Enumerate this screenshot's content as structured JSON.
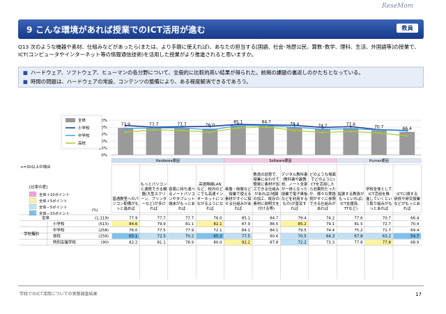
{
  "watermark": "ReseMom",
  "title": "9  こんな環境があれば授業でのICT活用が進む",
  "tag": "教員",
  "question": "Q13  次のような機器や素材、仕組みなどがあったら(または、より手軽に使えれば)、あなたの担当する[国語、社会･地歴公民、算数･数学、理科、生活、外国語等]の授業で、ICT(コンピュータやインターネット等の情報通信技術)を活用した授業がより推進されると思いますか。",
  "findings": [
    "ハードウェア、ソフトウェア、ヒューマンの各分野について、全般的に比較的高い結果が得られた。前掲の課題の裏返しのかたちとなっている。",
    "時間の問題は、ハードウェアの常設、コンテンツの整備により、ある程度解消できるであろう。"
  ],
  "footer": "学校でのICT活用についての実態調査結果",
  "page": "17",
  "n_note": "n=30以上の場合",
  "legend_title": "[比率の差]",
  "legend_items": [
    "全体＋10ポイント",
    "全体＋5ポイント",
    "全体－5ポイント",
    "全体－10ポイント"
  ],
  "row_header": "学校種別",
  "col_n": "(n)",
  "pct": "(%)",
  "chart_data": {
    "type": "bar",
    "ylim": [
      0,
      100
    ],
    "yticks": [
      "0%",
      "20%",
      "40%",
      "60%",
      "80%",
      "100%"
    ],
    "groups": [
      "Hardware要因",
      "Software要因",
      "Human要因"
    ],
    "categories": [
      "普通教室へのパソコン配備がもっと進めば",
      "もっとパソコンと連携できる機器(大型スクリーン、プリンターなど)が多ければ",
      "容易に持ち運べるノートパソコンやタブレット端末がもっとあれば",
      "高速無線LANなど、校内のどこでも高速インターネットにつながるようになれば",
      "画像・映像など、授業で使える素材がすぐに探せる仕組みがあれば",
      "教員の創意で、授業に合わせて簡単に素材が加工できる仕組みがあれば(地図の加工、既存の素材に説明文を付ける等)",
      "デジタル教科書(教科書や副教材、ノート全部が一体となった授業で電子黒板などを利用するもの)が普及すれば",
      "どのような場面でどのようにICTを活用したら効果的だったか、様々な実践例がすぐに参照できる仕組みがあれば",
      "指導する教員がもっといれば(ICT支援員、TTなど)",
      "学校全体としてICT活用を推進していくという取り組みがもっとあれば",
      "ICTに関する研修や研究授業などがもっとあれば"
    ],
    "series": [
      {
        "name": "全体",
        "n": "(1,119)",
        "values": [
          77.9,
          77.7,
          77.7,
          76.0,
          85.1,
          84.7,
          79.4,
          74.2,
          77.6,
          70.7,
          66.4
        ]
      },
      {
        "name": "小学校",
        "n": "(513)",
        "values": [
          84.6,
          79.9,
          81.1,
          82.1,
          87.9,
          86.5,
          85.2,
          79.1,
          81.5,
          72.7,
          70.4
        ]
      },
      {
        "name": "中学校",
        "n": "(258)",
        "values": [
          76.0,
          77.5,
          77.9,
          72.1,
          84.1,
          84.1,
          79.5,
          74.4,
          75.2,
          71.7,
          69.4
        ]
      },
      {
        "name": "高校",
        "n": "(258)",
        "values": [
          65.1,
          72.5,
          70.2,
          65.3,
          77.5,
          80.6,
          70.5,
          64.3,
          67.8,
          63.2,
          54.7
        ]
      },
      {
        "name": "特別支援学校",
        "n": "(90)",
        "values": [
          82.2,
          81.1,
          78.9,
          80.0,
          92.2,
          87.8,
          72.2,
          73.3,
          77.8,
          77.8,
          68.9
        ]
      }
    ],
    "colors": {
      "bar": "#9a9a9a",
      "elem": "#1f3f9a",
      "middle": "#3fa8e0",
      "high": "#b8cc2a",
      "plus10": "#f2a2d8",
      "plus5": "#fdf3a0",
      "minus5": "#bfe0f6",
      "minus10": "#7cc0ec",
      "hw": "#cde0f3",
      "sw": "#f5c8e6",
      "hu": "#dde6f5"
    }
  }
}
